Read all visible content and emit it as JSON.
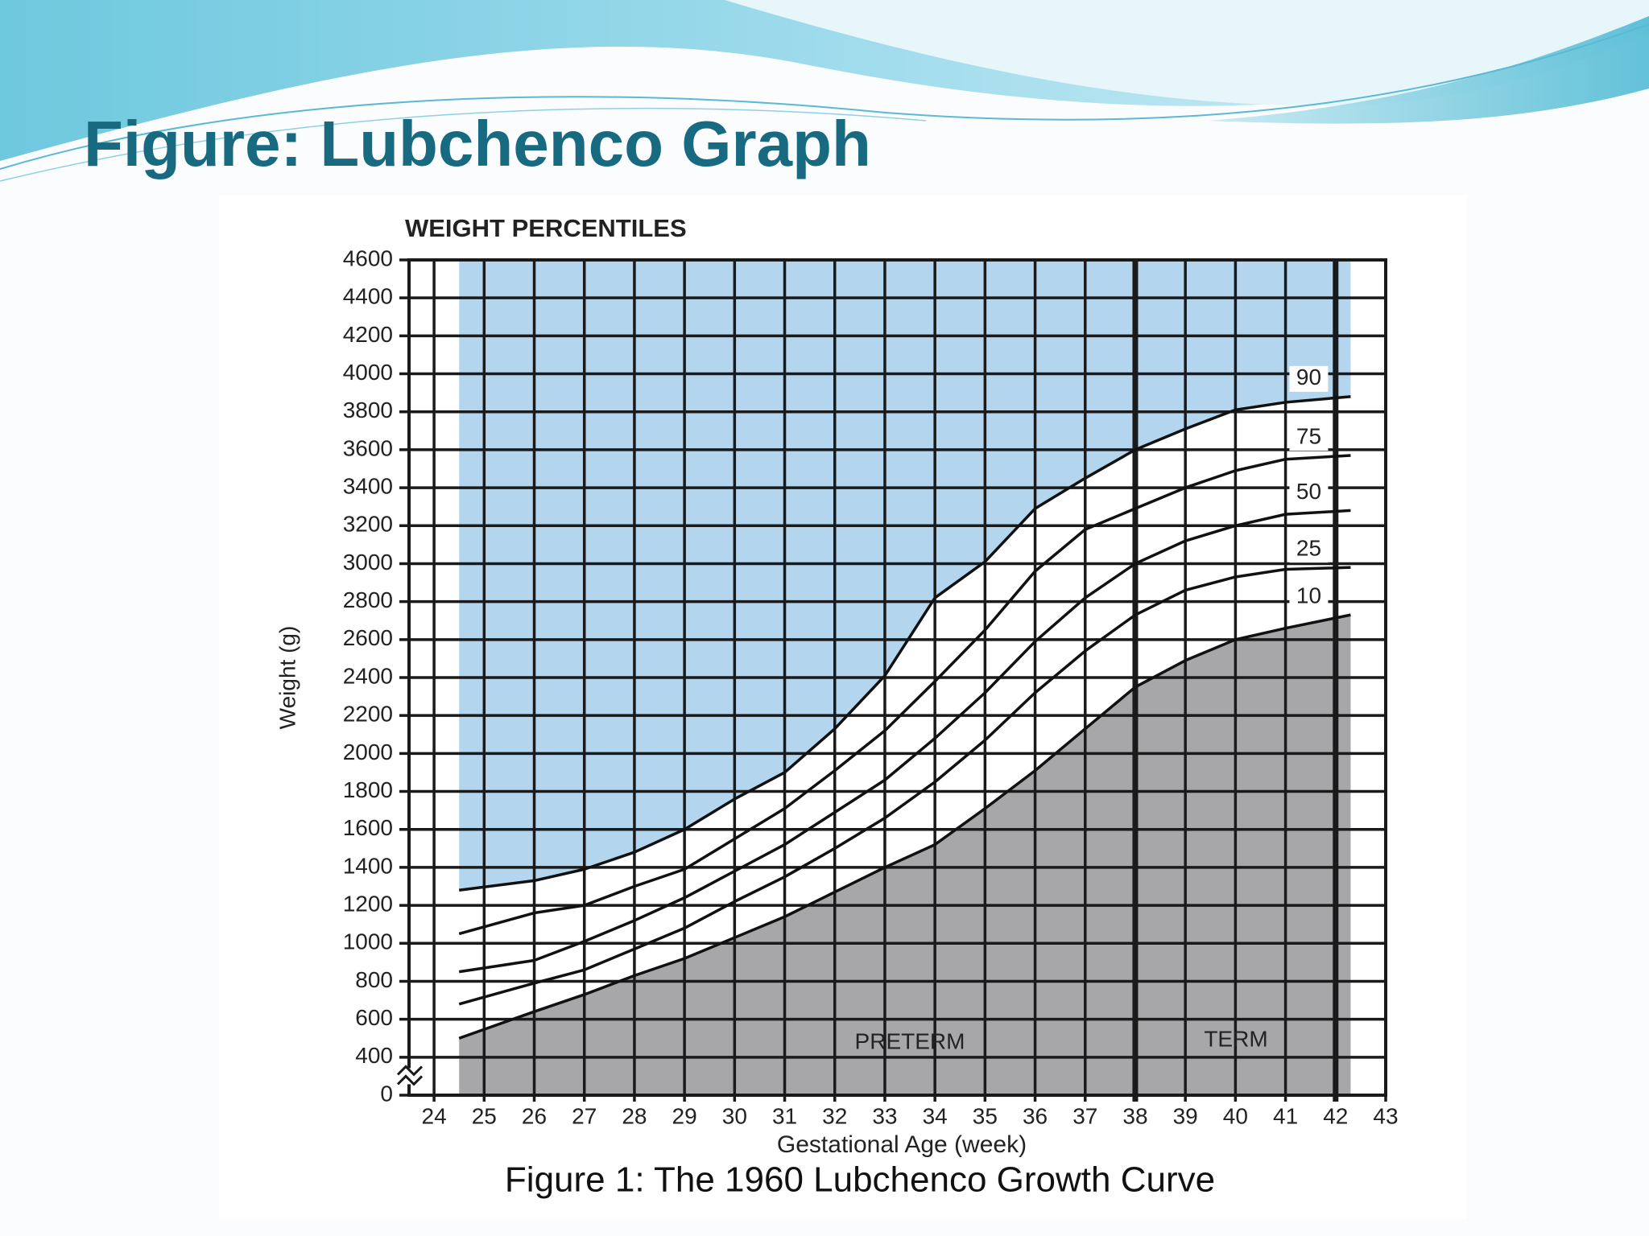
{
  "slide_title": "Figure: Lubchenco Graph",
  "chart_data": {
    "type": "line",
    "title": "WEIGHT PERCENTILES",
    "x_label": "Gestational Age (week)",
    "y_label": "Weight (g)",
    "caption": "Figure 1: The 1960 Lubchenco Growth Curve",
    "annotations": [
      "PRETERM",
      "TERM"
    ],
    "x": [
      24.5,
      26,
      27,
      28,
      29,
      30,
      31,
      32,
      33,
      34,
      35,
      36,
      37,
      38,
      39,
      40,
      41,
      42.3
    ],
    "series": [
      {
        "name": "90",
        "color": "#111111",
        "values": [
          1280,
          1330,
          1390,
          1480,
          1600,
          1760,
          1900,
          2130,
          2410,
          2820,
          3010,
          3290,
          3450,
          3600,
          3710,
          3810,
          3850,
          3880
        ]
      },
      {
        "name": "75",
        "color": "#111111",
        "values": [
          1050,
          1160,
          1200,
          1300,
          1390,
          1550,
          1710,
          1910,
          2120,
          2380,
          2650,
          2960,
          3180,
          3290,
          3400,
          3490,
          3550,
          3570
        ]
      },
      {
        "name": "50",
        "color": "#111111",
        "values": [
          850,
          910,
          1010,
          1120,
          1240,
          1380,
          1520,
          1690,
          1860,
          2080,
          2320,
          2590,
          2820,
          3000,
          3120,
          3200,
          3260,
          3280
        ]
      },
      {
        "name": "25",
        "color": "#111111",
        "values": [
          680,
          790,
          860,
          970,
          1080,
          1220,
          1350,
          1500,
          1660,
          1850,
          2070,
          2320,
          2540,
          2730,
          2860,
          2930,
          2970,
          2980
        ]
      },
      {
        "name": "10",
        "color": "#111111",
        "values": [
          500,
          640,
          730,
          830,
          920,
          1030,
          1140,
          1270,
          1400,
          1520,
          1710,
          1910,
          2130,
          2350,
          2490,
          2600,
          2660,
          2730
        ]
      }
    ],
    "fill_above_top": "#b4d5ee",
    "fill_below_bottom": "#a7a7a9",
    "xlim": [
      23.5,
      43
    ],
    "xticks": [
      24,
      25,
      26,
      27,
      28,
      29,
      30,
      31,
      32,
      33,
      34,
      35,
      36,
      37,
      38,
      39,
      40,
      41,
      42,
      43
    ],
    "thick_gridlines_x": [
      38,
      42
    ],
    "ylim": [
      0,
      4600
    ],
    "y_break": [
      0,
      400
    ],
    "yticks": [
      0,
      400,
      600,
      800,
      1000,
      1200,
      1400,
      1600,
      1800,
      2000,
      2200,
      2400,
      2600,
      2800,
      3000,
      3200,
      3400,
      3600,
      3800,
      4000,
      4200,
      4400,
      4600
    ],
    "grid": true
  }
}
